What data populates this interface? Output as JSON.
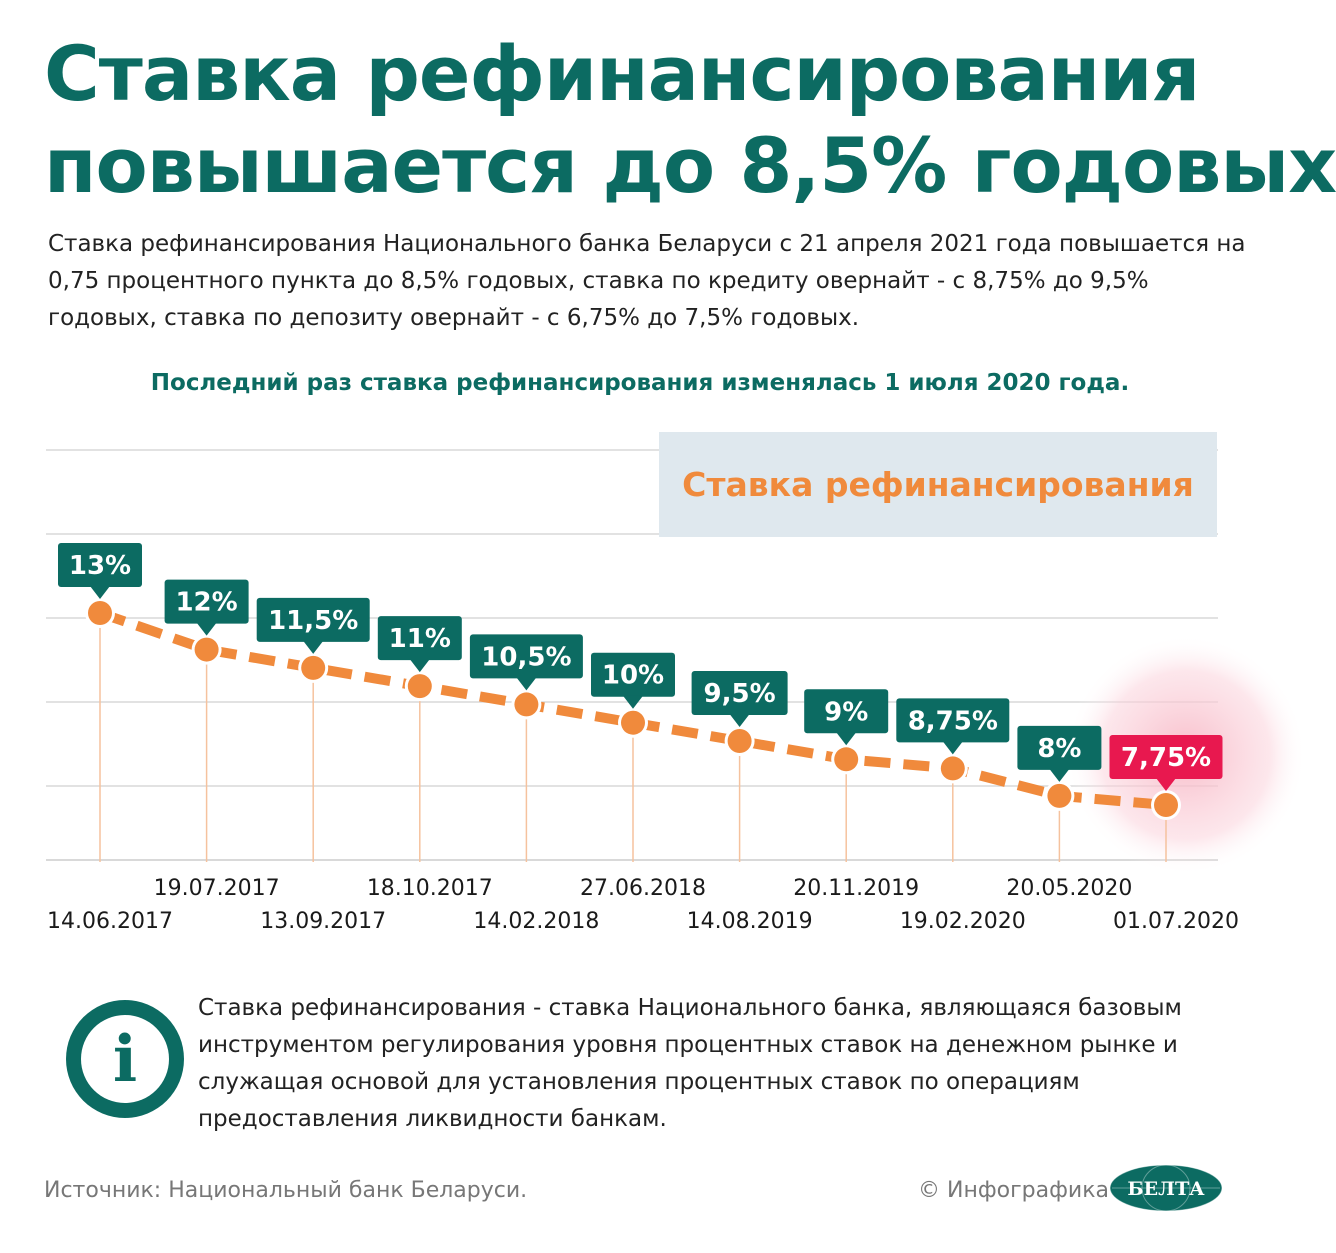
{
  "title": {
    "line1": "Ставка рефинансирования",
    "line2": "повышается до 8,5% годовых"
  },
  "intro": "Ставка рефинансирования Национального банка Беларуси с 21 апреля 2021 года повышается на 0,75 процентного пункта до 8,5% годовых, ставка по кредиту овернайт - с 8,75% до 9,5% годовых, ставка по депозиту овернайт - с 6,75% до 7,5% годовых.",
  "last_change": "Последний раз ставка рефинансирования изменялась 1 июля 2020 года.",
  "chart_data": {
    "type": "line",
    "title": "Ставка рефинансирования",
    "x": [
      "14.06.2017",
      "19.07.2017",
      "13.09.2017",
      "18.10.2017",
      "14.02.2018",
      "27.06.2018",
      "14.08.2019",
      "20.11.2019",
      "19.02.2020",
      "20.05.2020",
      "01.07.2020"
    ],
    "values": [
      13,
      12,
      11.5,
      11,
      10.5,
      10,
      9.5,
      9,
      8.75,
      8,
      7.75
    ],
    "labels": [
      "13%",
      "12%",
      "11,5%",
      "11%",
      "10,5%",
      "10%",
      "9,5%",
      "9%",
      "8,75%",
      "8%",
      "7,75%"
    ],
    "highlight_index": 10,
    "colors": {
      "line": "#f08a3c",
      "label_bg": "#0c6b62",
      "highlight_bg": "#e8184f",
      "grid": "#d9d9d9",
      "guide": "#f5c29e"
    },
    "grid": true
  },
  "info_icon": "info-icon",
  "definition": "Ставка рефинансирования - ставка Национального банка, являющаяся базовым инструментом регулирования уровня процентных ставок на денежном рынке и служащая основой для установления процентных ставок по операциям предоставления ликвидности банкам.",
  "footer": {
    "source": "Источник: Национальный банк Беларуси.",
    "credit": "© Инфографика",
    "logo_text": "БЕЛТА"
  }
}
